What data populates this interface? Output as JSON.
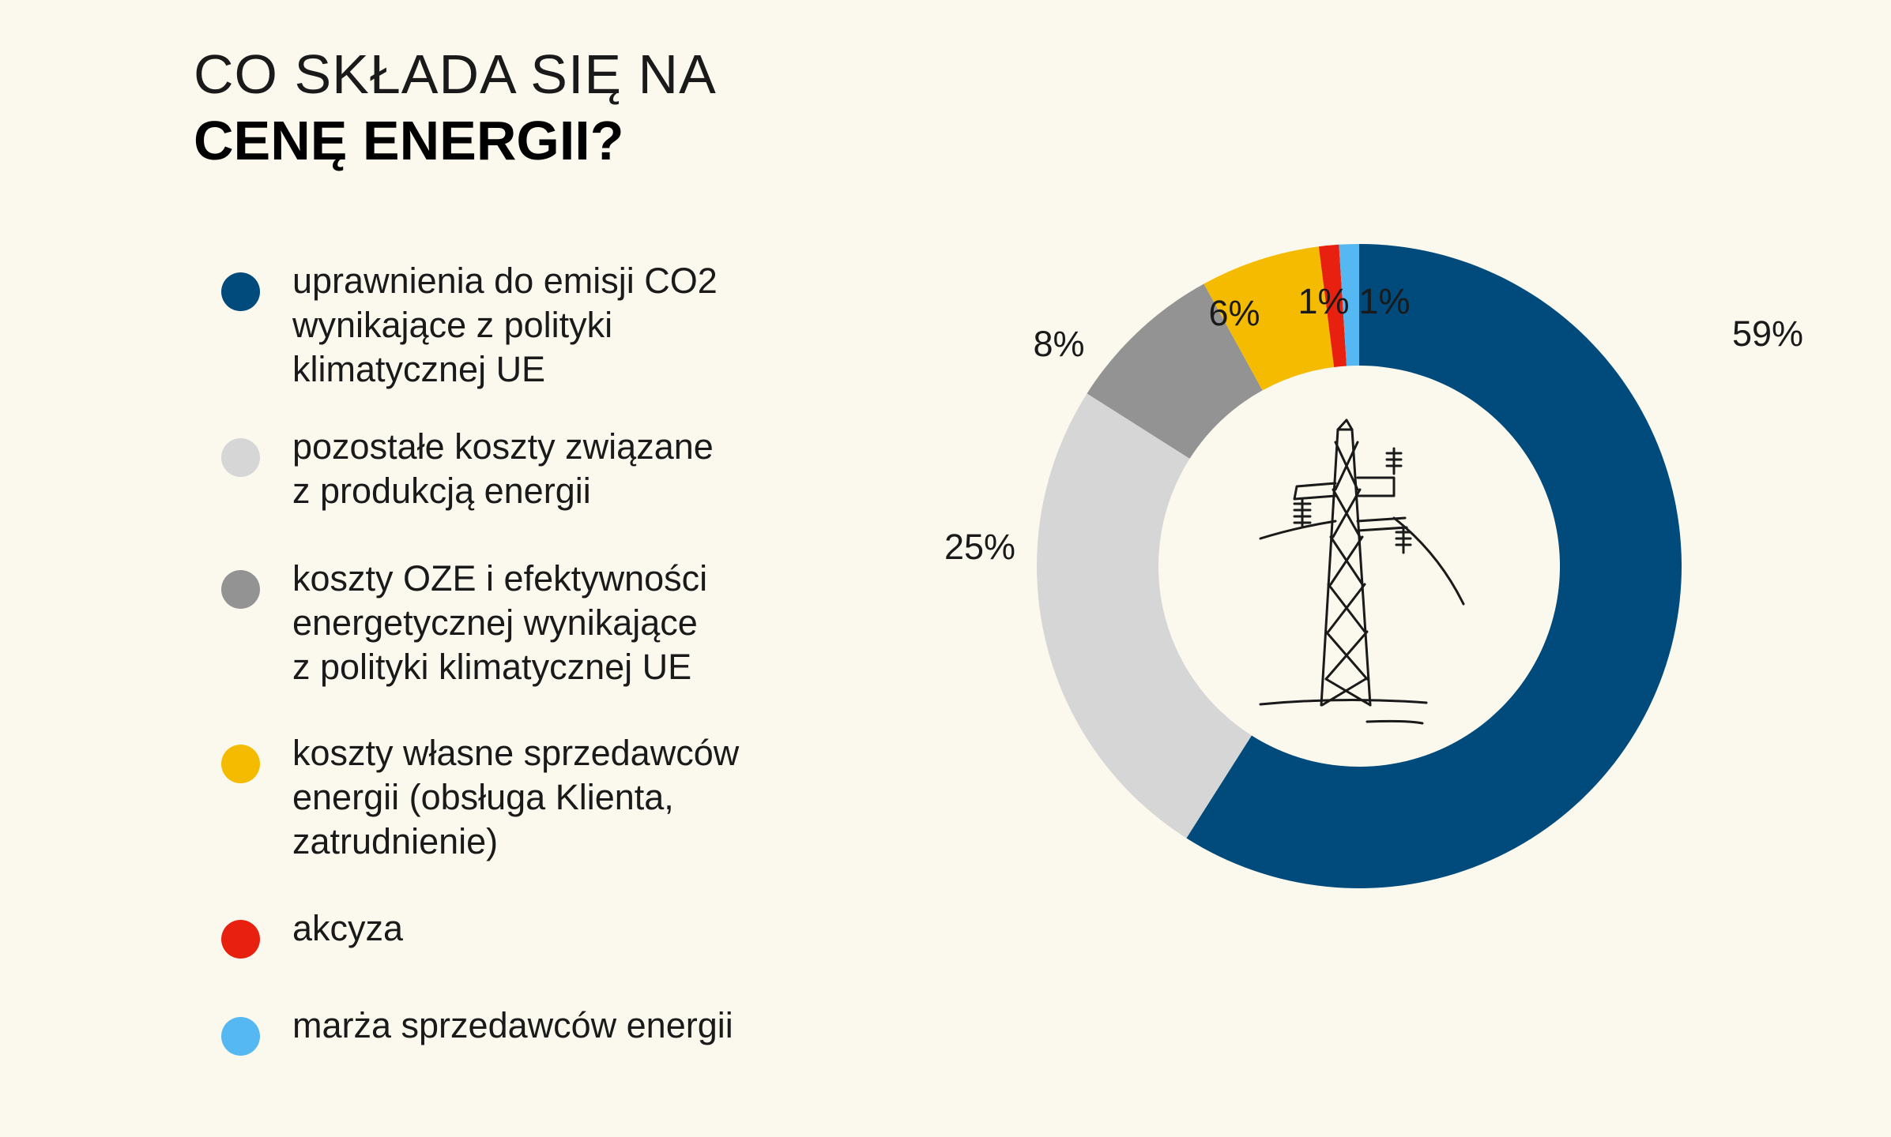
{
  "title": {
    "line1": "CO SKŁADA SIĘ NA",
    "line2": "CENĘ ENERGII?"
  },
  "chart_data": {
    "type": "pie",
    "categories": [
      "uprawnienia do emisji CO2\nwynikające z polityki\nklimatycznej UE",
      "pozostałe koszty związane\nz produkcją energii",
      "koszty OZE i efektywności\nenergetycznej wynikające\nz polityki klimatycznej UE",
      "koszty własne sprzedawców\nenergii (obsługa Klienta,\nzatrudnienie)",
      "akcyza",
      "marża sprzedawców energii"
    ],
    "values": [
      59,
      25,
      8,
      6,
      1,
      1
    ],
    "value_labels": [
      "59%",
      "25%",
      "8%",
      "6%",
      "1%",
      "1%"
    ],
    "colors": [
      "#004a7c",
      "#d6d6d6",
      "#939393",
      "#f5bb00",
      "#e8200f",
      "#55b8f2"
    ],
    "donut": true,
    "center_icon": "power-pylon-icon",
    "legend_placement": "left"
  }
}
